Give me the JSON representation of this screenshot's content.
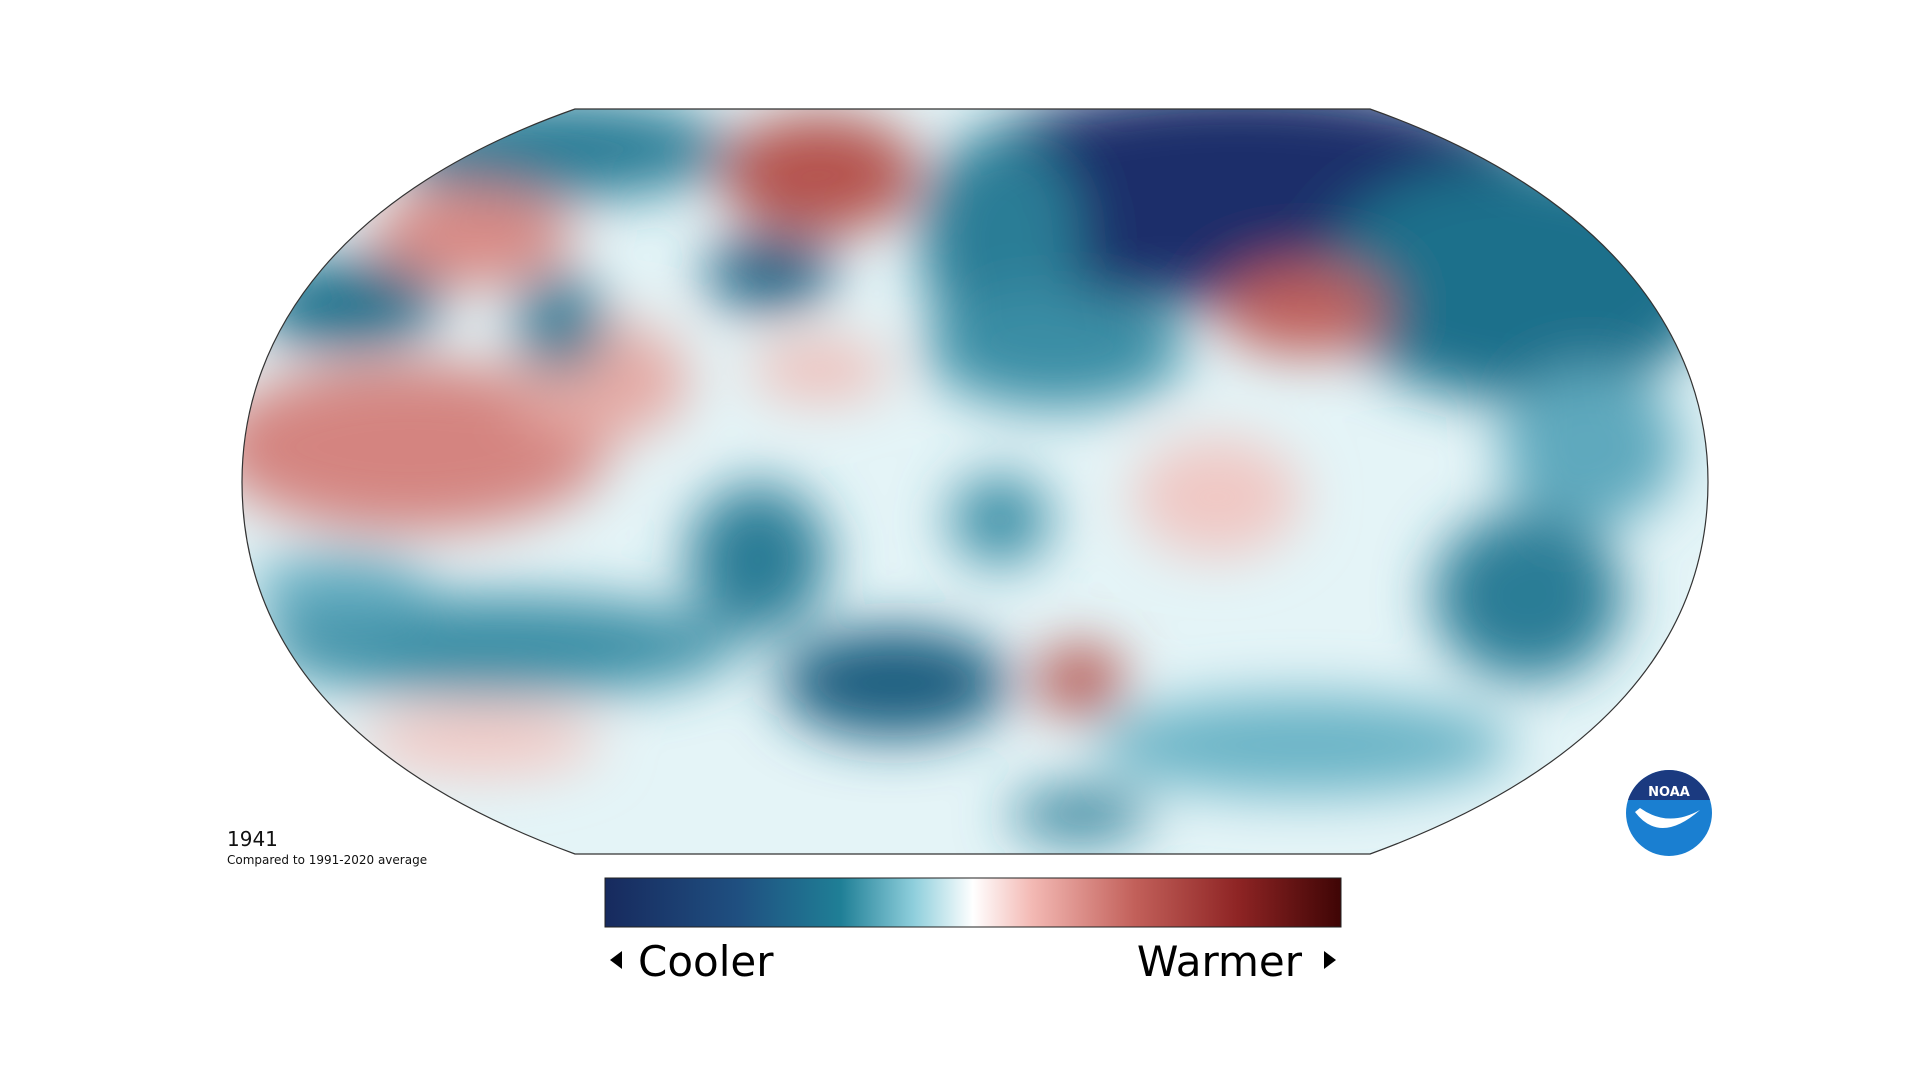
{
  "year": "1941",
  "subtitle": "Compared to 1991-2020 average",
  "legend": {
    "low": "Cooler",
    "high": "Warmer"
  },
  "logo": "NOAA"
}
